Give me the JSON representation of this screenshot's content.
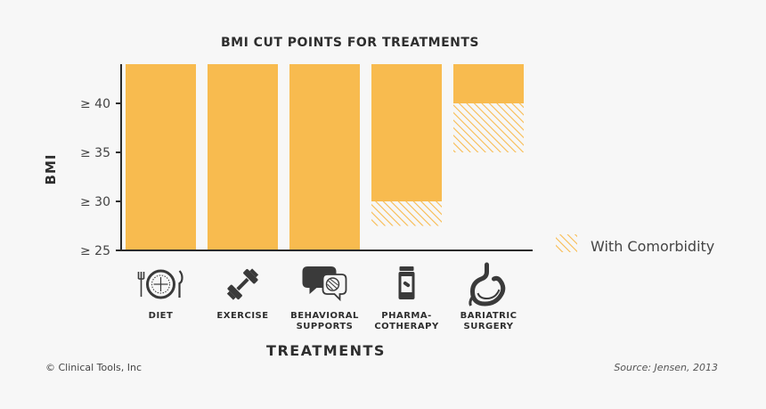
{
  "chart_data": {
    "type": "bar",
    "title": "BMI CUT POINTS FOR TREATMENTS",
    "xlabel": "TREATMENTS",
    "ylabel": "BMI",
    "ylim": [
      25,
      44
    ],
    "ytick_values": [
      25,
      30,
      35,
      40
    ],
    "ytick_labels": [
      "≥ 25",
      "≥ 30",
      "≥ 35",
      "≥ 40"
    ],
    "categories": [
      {
        "label_lines": [
          "DIET"
        ],
        "icon": "plate-icon"
      },
      {
        "label_lines": [
          "EXERCISE"
        ],
        "icon": "dumbbell-icon"
      },
      {
        "label_lines": [
          "BEHAVIORAL",
          "SUPPORTS"
        ],
        "icon": "speech-bubbles-icon"
      },
      {
        "label_lines": [
          "PHARMA-",
          "COTHERAPY"
        ],
        "icon": "pill-bottle-icon"
      },
      {
        "label_lines": [
          "BARIATRIC",
          "SURGERY"
        ],
        "icon": "stomach-icon"
      }
    ],
    "series": [
      {
        "role": "solid",
        "bottoms": [
          25,
          25,
          25,
          30,
          40
        ]
      },
      {
        "name": "With Comorbidity",
        "role": "hatched",
        "ranges": [
          null,
          null,
          null,
          [
            27.5,
            30
          ],
          [
            35,
            40
          ]
        ]
      }
    ],
    "legend": {
      "label": "With Comorbidity",
      "position": "right"
    },
    "colors": {
      "bar": "#f8bb4f",
      "hatch": "#f8bb4f",
      "axis": "#2b2b2b",
      "icon": "#3a3a3a",
      "background": "#f7f7f7"
    }
  },
  "footer": {
    "copyright": "© Clinical Tools, Inc",
    "source": "Source: Jensen, 2013"
  }
}
